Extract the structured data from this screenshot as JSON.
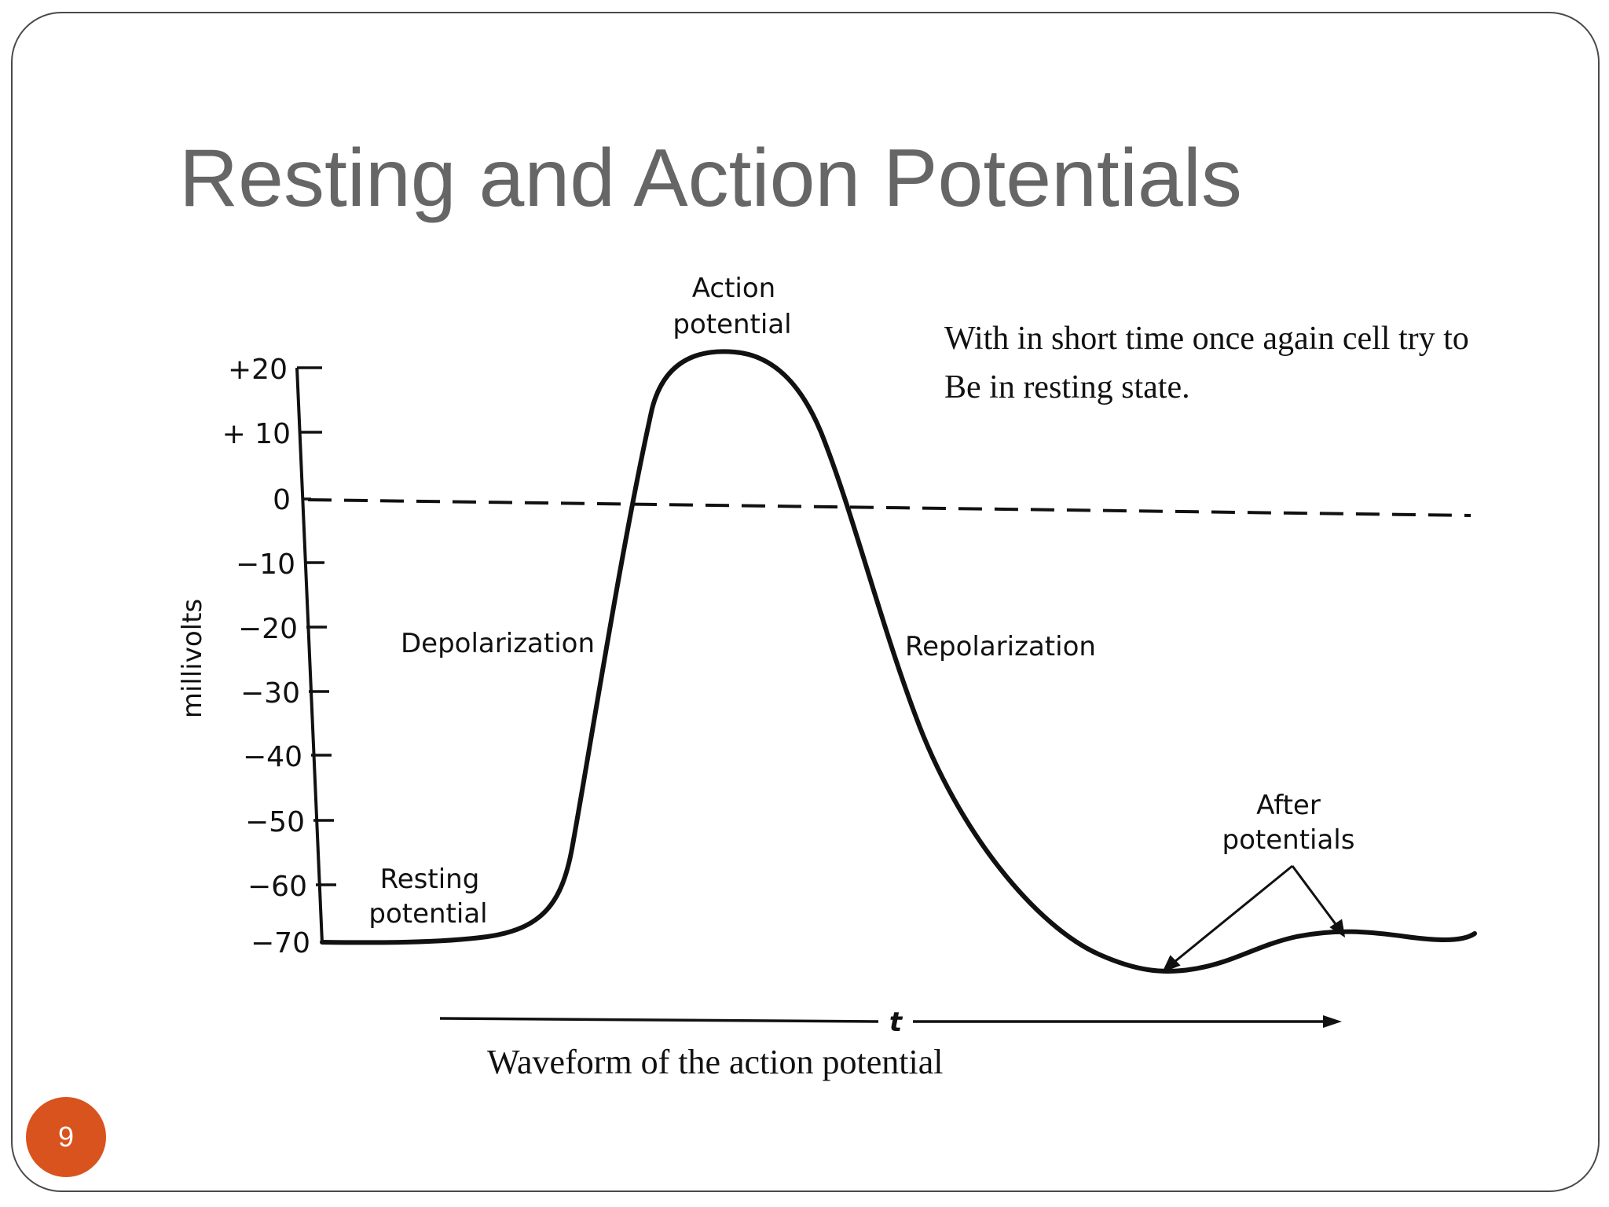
{
  "slide": {
    "title": "Resting and Action Potentials",
    "note_lines": [
      "With in short time once again cell try to",
      "Be in resting state."
    ],
    "caption": "Waveform of the action potential",
    "page_number": "9",
    "accent_color": "#d9531e",
    "title_color": "#666666"
  },
  "diagram": {
    "y_axis_label": "millivolts",
    "y_ticks": [
      "+20",
      "+ 10",
      "0",
      "−10",
      "−20",
      "−30",
      "−40",
      "−50",
      "−60",
      "−70"
    ],
    "labels": {
      "action_potential_line1": "Action",
      "action_potential_line2": "potential",
      "depolarization": "Depolarization",
      "repolarization": "Repolarization",
      "resting_line1": "Resting",
      "resting_line2": "potential",
      "after_line1": "After",
      "after_line2": "potentials",
      "time": "t"
    }
  }
}
